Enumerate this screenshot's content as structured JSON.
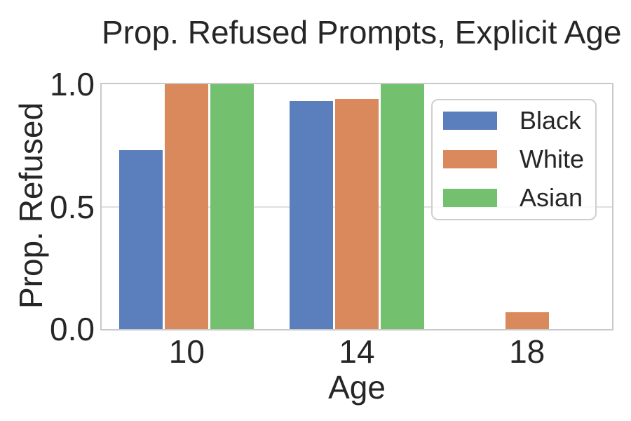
{
  "title": "Prop. Refused Prompts, Explicit Age",
  "chart_data": {
    "type": "bar",
    "title": "Prop. Refused Prompts, Explicit Age",
    "xlabel": "Age",
    "ylabel": "Prop. Refused",
    "categories": [
      "10",
      "14",
      "18"
    ],
    "series": [
      {
        "name": "Black",
        "color": "#5b7ebc",
        "values": [
          0.73,
          0.93,
          0.0
        ]
      },
      {
        "name": "White",
        "color": "#d9895c",
        "values": [
          1.0,
          0.94,
          0.07
        ]
      },
      {
        "name": "Asian",
        "color": "#73c06f",
        "values": [
          1.0,
          1.0,
          0.0
        ]
      }
    ],
    "ylim": [
      0.0,
      1.0
    ],
    "yticks": [
      "0.0",
      "0.5",
      "1.0"
    ],
    "grid": true,
    "legend_position": "upper right",
    "legend_entries": [
      "Black",
      "White",
      "Asian"
    ]
  },
  "styles": {
    "text_color": "#262626",
    "spine_color": "#c9c9c9",
    "grid_color": "#e0e0e0",
    "legend_border_color": "#cfcfcf",
    "background": "#ffffff"
  }
}
